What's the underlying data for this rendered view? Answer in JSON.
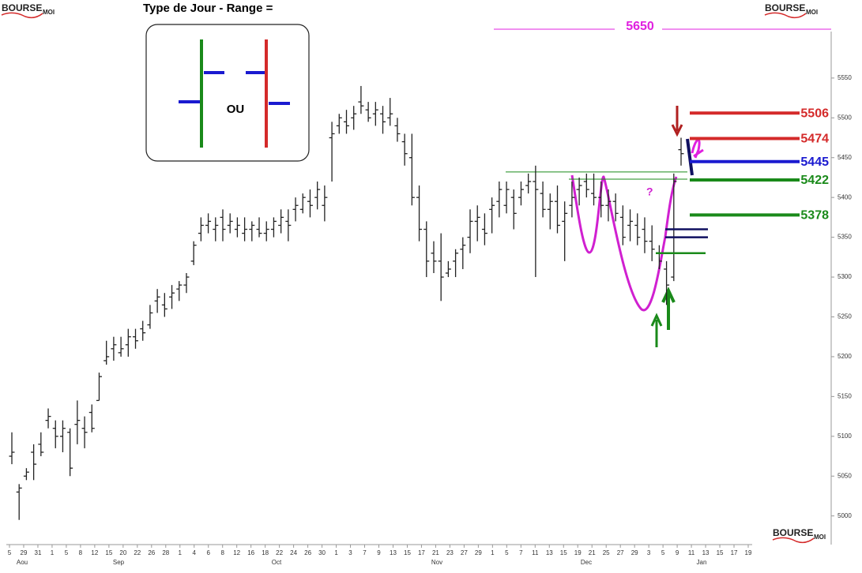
{
  "chart_data": {
    "type": "ohlc",
    "title": "Type de Jour - Range =",
    "inset_label": "OU",
    "question": "?",
    "logo": {
      "name": "BOURSE",
      "suffix": "MOI"
    },
    "color": "#222222",
    "open": [
      5075,
      5030,
      5050,
      5080,
      5090,
      5120,
      5110,
      5100,
      5105,
      5115,
      5110,
      5130,
      5145,
      5195,
      5210,
      5205,
      5215,
      5225,
      5235,
      5240,
      5270,
      5265,
      5275,
      5285,
      5290,
      5320,
      5355,
      5365,
      5360,
      5375,
      5365,
      5360,
      5355,
      5360,
      5360,
      5355,
      5360,
      5365,
      5370,
      5385,
      5385,
      5395,
      5400,
      5390,
      5475,
      5490,
      5495,
      5500,
      5520,
      5510,
      5505,
      5505,
      5500,
      5490,
      5470,
      5450,
      5400,
      5360,
      5330,
      5320,
      5305,
      5320,
      5335,
      5350,
      5370,
      5360,
      5385,
      5395,
      5390,
      5400,
      5400,
      5415,
      5420,
      5405,
      5385,
      5395,
      5370,
      5390,
      5410,
      5420,
      5405,
      5400,
      5390,
      5395,
      5375,
      5365,
      5365,
      5360,
      5345,
      5330,
      5310,
      5300,
      5460
    ],
    "high": [
      5105,
      5040,
      5060,
      5090,
      5105,
      5135,
      5120,
      5120,
      5110,
      5145,
      5125,
      5140,
      5180,
      5220,
      5225,
      5225,
      5235,
      5235,
      5245,
      5265,
      5285,
      5280,
      5290,
      5295,
      5305,
      5345,
      5375,
      5380,
      5375,
      5385,
      5380,
      5375,
      5375,
      5370,
      5375,
      5370,
      5375,
      5385,
      5385,
      5400,
      5405,
      5410,
      5420,
      5415,
      5495,
      5505,
      5510,
      5515,
      5540,
      5520,
      5520,
      5515,
      5525,
      5500,
      5480,
      5480,
      5415,
      5370,
      5345,
      5355,
      5320,
      5335,
      5350,
      5385,
      5390,
      5380,
      5400,
      5420,
      5420,
      5410,
      5420,
      5430,
      5440,
      5420,
      5405,
      5415,
      5395,
      5420,
      5425,
      5430,
      5430,
      5420,
      5410,
      5405,
      5390,
      5385,
      5380,
      5375,
      5365,
      5340,
      5320,
      5430,
      5475
    ],
    "low": [
      5065,
      4995,
      5045,
      5045,
      5075,
      5110,
      5085,
      5080,
      5050,
      5090,
      5085,
      5105,
      5145,
      5190,
      5195,
      5200,
      5200,
      5210,
      5220,
      5235,
      5255,
      5250,
      5260,
      5270,
      5280,
      5315,
      5345,
      5355,
      5345,
      5345,
      5355,
      5350,
      5345,
      5345,
      5350,
      5345,
      5350,
      5355,
      5345,
      5370,
      5380,
      5375,
      5385,
      5370,
      5420,
      5480,
      5480,
      5485,
      5505,
      5495,
      5490,
      5480,
      5490,
      5470,
      5440,
      5390,
      5345,
      5300,
      5305,
      5270,
      5300,
      5300,
      5310,
      5330,
      5345,
      5340,
      5355,
      5375,
      5380,
      5360,
      5390,
      5405,
      5300,
      5375,
      5360,
      5355,
      5320,
      5375,
      5390,
      5400,
      5390,
      5375,
      5370,
      5370,
      5340,
      5345,
      5340,
      5330,
      5320,
      5310,
      5265,
      5295,
      5440
    ],
    "close": [
      5080,
      5035,
      5055,
      5065,
      5080,
      5125,
      5100,
      5110,
      5060,
      5120,
      5105,
      5110,
      5175,
      5200,
      5215,
      5210,
      5225,
      5220,
      5230,
      5255,
      5275,
      5260,
      5280,
      5290,
      5300,
      5340,
      5365,
      5370,
      5365,
      5360,
      5370,
      5365,
      5360,
      5365,
      5355,
      5360,
      5370,
      5375,
      5365,
      5390,
      5400,
      5390,
      5410,
      5400,
      5480,
      5500,
      5490,
      5505,
      5515,
      5500,
      5510,
      5495,
      5505,
      5480,
      5455,
      5400,
      5360,
      5320,
      5320,
      5300,
      5310,
      5330,
      5340,
      5370,
      5375,
      5355,
      5390,
      5410,
      5410,
      5380,
      5410,
      5420,
      5410,
      5385,
      5395,
      5365,
      5380,
      5400,
      5415,
      5410,
      5400,
      5390,
      5395,
      5380,
      5350,
      5370,
      5350,
      5345,
      5335,
      5320,
      5290,
      5420,
      5455
    ],
    "ylim": [
      4964,
      5648
    ],
    "yticks": [
      5000,
      5050,
      5100,
      5150,
      5200,
      5250,
      5300,
      5350,
      5400,
      5450,
      5500,
      5550
    ],
    "xticks": [
      "5",
      "29",
      "31",
      "1",
      "5",
      "8",
      "12",
      "15",
      "20",
      "22",
      "26",
      "28",
      "1",
      "4",
      "6",
      "8",
      "12",
      "16",
      "18",
      "22",
      "24",
      "26",
      "30",
      "1",
      "3",
      "7",
      "9",
      "13",
      "15",
      "17",
      "21",
      "23",
      "27",
      "29",
      "1",
      "5",
      "7",
      "11",
      "13",
      "15",
      "19",
      "21",
      "25",
      "27",
      "29",
      "3",
      "5",
      "9",
      "11",
      "13",
      "15",
      "17",
      "19"
    ],
    "months": [
      "Aou",
      "Sep",
      "Oct",
      "Nov",
      "Dec",
      "Jan"
    ],
    "target": {
      "value": 5650,
      "color": "#e020e0"
    },
    "levels": [
      {
        "value": 5506,
        "color": "#d42a2a"
      },
      {
        "value": 5474,
        "color": "#d42a2a"
      },
      {
        "value": 5445,
        "color": "#1a1ad0"
      },
      {
        "value": 5422,
        "color": "#1a8a1a"
      },
      {
        "value": 5378,
        "color": "#1a8a1a"
      }
    ],
    "short_lines": [
      {
        "value": 5360,
        "color": "#101060"
      },
      {
        "value": 5350,
        "color": "#101060"
      },
      {
        "value": 5330,
        "color": "#1a8a1a"
      }
    ],
    "thin_lines": [
      {
        "value": 5432,
        "color": "#1a8a1a"
      },
      {
        "value": 5423,
        "color": "#1a8a1a"
      }
    ]
  }
}
